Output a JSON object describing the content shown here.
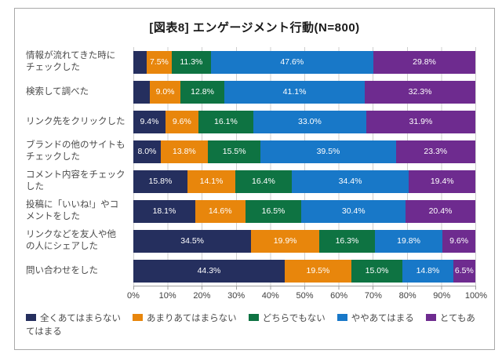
{
  "title": "[図表8] エンゲージメント行動(N=800)",
  "chart_data": {
    "type": "bar",
    "stacked": true,
    "orientation": "horizontal",
    "title": "[図表8] エンゲージメント行動(N=800)",
    "sample_note": "N=800",
    "categories": [
      "情報が流れてきた時に\nチェックした",
      "検索して調べた",
      "リンク先をクリックした",
      "ブランドの他のサイトも\nチェックした",
      "コメント内容をチェック\nした",
      "投稿に「いいね!」やコ\nメントをした",
      "リンクなどを友人や他\nの人にシェアした",
      "問い合わせをした"
    ],
    "series": [
      {
        "name": "全くあてはまらない",
        "color": "#252f5e",
        "values": [
          3.8,
          4.8,
          9.4,
          8.0,
          15.8,
          18.1,
          34.5,
          44.3
        ],
        "labels": [
          "",
          "",
          "9.4%",
          "8.0%",
          "15.8%",
          "18.1%",
          "34.5%",
          "44.3%"
        ]
      },
      {
        "name": "あまりあてはまらない",
        "color": "#e8860c",
        "values": [
          7.5,
          9.0,
          9.6,
          13.8,
          14.1,
          14.6,
          19.9,
          19.5
        ],
        "labels": [
          "7.5%",
          "9.0%",
          "9.6%",
          "13.8%",
          "14.1%",
          "14.6%",
          "19.9%",
          "19.5%"
        ]
      },
      {
        "name": "どちらでもない",
        "color": "#0e7342",
        "values": [
          11.3,
          12.8,
          16.1,
          15.5,
          16.4,
          16.5,
          16.3,
          15.0
        ],
        "labels": [
          "11.3%",
          "12.8%",
          "16.1%",
          "15.5%",
          "16.4%",
          "16.5%",
          "16.3%",
          "15.0%"
        ]
      },
      {
        "name": "ややあてはまる",
        "color": "#1878c8",
        "values": [
          47.6,
          41.1,
          33.0,
          39.5,
          34.4,
          30.4,
          19.8,
          14.8
        ],
        "labels": [
          "47.6%",
          "41.1%",
          "33.0%",
          "39.5%",
          "34.4%",
          "30.4%",
          "19.8%",
          "14.8%"
        ]
      },
      {
        "name": "とてもあてはまる",
        "color": "#6e2b8f",
        "values": [
          29.8,
          32.3,
          31.9,
          23.3,
          19.4,
          20.4,
          9.6,
          6.5
        ],
        "labels": [
          "29.8%",
          "32.3%",
          "31.9%",
          "23.3%",
          "19.4%",
          "20.4%",
          "9.6%",
          "6.5%"
        ]
      }
    ],
    "x_ticks": [
      "0%",
      "10%",
      "20%",
      "30%",
      "40%",
      "50%",
      "60%",
      "70%",
      "80%",
      "90%",
      "100%"
    ],
    "xlim": [
      0,
      100
    ],
    "grid": true,
    "legend_position": "bottom"
  }
}
